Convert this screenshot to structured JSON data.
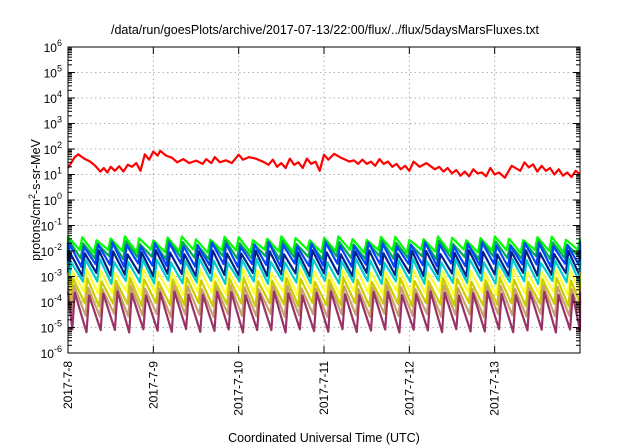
{
  "chart_data": {
    "type": "line",
    "title": "/data/run/goesPlots/archive/2017-07-13/22:00/flux/../flux/5daysMarsFluxes.txt",
    "xlabel": "Coordinated Universal Time (UTC)",
    "ylabel_prefix": "protons/cm",
    "ylabel_exp": "2",
    "ylabel_suffix": "-s-sr-MeV",
    "y_scale": "log",
    "ylim_exp": [
      -6,
      6
    ],
    "y_ticks": [
      {
        "base": "10",
        "exp": "6"
      },
      {
        "base": "10",
        "exp": "5"
      },
      {
        "base": "10",
        "exp": "4"
      },
      {
        "base": "10",
        "exp": "3"
      },
      {
        "base": "10",
        "exp": "2"
      },
      {
        "base": "10",
        "exp": "1"
      },
      {
        "base": "10",
        "exp": "0"
      },
      {
        "base": "10",
        "exp": "-1"
      },
      {
        "base": "10",
        "exp": "-2"
      },
      {
        "base": "10",
        "exp": "-3"
      },
      {
        "base": "10",
        "exp": "-4"
      },
      {
        "base": "10",
        "exp": "-5"
      },
      {
        "base": "10",
        "exp": "-6"
      }
    ],
    "x_ticks": [
      "2017-7-8",
      "2017-7-9",
      "2017-7-10",
      "2017-7-11",
      "2017-7-12",
      "2017-7-13"
    ],
    "xlim_days": [
      0,
      6
    ],
    "grid": true,
    "series": [
      {
        "color": "#ff0000",
        "x": [
          0.0,
          0.08,
          0.12,
          0.19,
          0.26,
          0.32,
          0.38,
          0.42,
          0.46,
          0.5,
          0.55,
          0.6,
          0.65,
          0.7,
          0.75,
          0.8,
          0.85,
          0.9,
          0.95,
          1.0,
          1.05,
          1.08,
          1.15,
          1.22,
          1.28,
          1.35,
          1.42,
          1.5,
          1.58,
          1.62,
          1.68,
          1.72,
          1.78,
          1.85,
          1.92,
          2.0,
          2.05,
          2.12,
          2.2,
          2.3,
          2.35,
          2.4,
          2.45,
          2.5,
          2.55,
          2.6,
          2.65,
          2.7,
          2.75,
          2.8,
          2.85,
          2.9,
          2.95,
          3.0,
          3.05,
          3.12,
          3.2,
          3.3,
          3.35,
          3.4,
          3.45,
          3.5,
          3.55,
          3.6,
          3.65,
          3.7,
          3.75,
          3.8,
          3.85,
          3.9,
          3.95,
          4.0,
          4.05,
          4.12,
          4.2,
          4.3,
          4.35,
          4.4,
          4.45,
          4.5,
          4.55,
          4.6,
          4.65,
          4.7,
          4.75,
          4.8,
          4.85,
          4.9,
          4.95,
          5.0,
          5.05,
          5.12,
          5.2,
          5.3,
          5.35,
          5.4,
          5.45,
          5.5,
          5.55,
          5.6,
          5.65,
          5.7,
          5.75,
          5.8,
          5.85,
          5.9,
          5.95,
          6.0
        ],
        "y": [
          18,
          48,
          62,
          42,
          32,
          22,
          13,
          18,
          12,
          20,
          14,
          21,
          13,
          24,
          20,
          28,
          14,
          62,
          38,
          80,
          55,
          85,
          55,
          45,
          30,
          40,
          28,
          35,
          26,
          40,
          28,
          48,
          30,
          36,
          28,
          60,
          38,
          48,
          42,
          30,
          24,
          38,
          20,
          28,
          18,
          42,
          24,
          30,
          18,
          42,
          26,
          32,
          14,
          60,
          38,
          65,
          45,
          32,
          36,
          26,
          38,
          26,
          32,
          22,
          40,
          26,
          32,
          20,
          26,
          16,
          22,
          14,
          32,
          20,
          28,
          16,
          20,
          13,
          18,
          11,
          15,
          9,
          13,
          8.5,
          16,
          11,
          12,
          8.5,
          18,
          10,
          12,
          7.5,
          22,
          14,
          30,
          19,
          25,
          13,
          22,
          14,
          18,
          10,
          16,
          9,
          12,
          8,
          14,
          10
        ]
      },
      {
        "color": "#00ff00",
        "phase": 0.0,
        "period": 0.1667,
        "peak": 0.032,
        "trough": 0.01
      },
      {
        "color": "#00aa55",
        "phase": 0.012,
        "period": 0.1667,
        "peak": 0.022,
        "trough": 0.0055
      },
      {
        "color": "#0044ff",
        "phase": 0.02,
        "period": 0.1667,
        "peak": 0.018,
        "trough": 0.0028
      },
      {
        "color": "#002288",
        "phase": 0.03,
        "period": 0.1667,
        "peak": 0.009,
        "trough": 0.0012
      },
      {
        "color": "#00cccc",
        "phase": 0.04,
        "period": 0.1667,
        "peak": 0.0042,
        "trough": 0.0006
      },
      {
        "color": "#ffff33",
        "phase": 0.05,
        "period": 0.1667,
        "peak": 0.0017,
        "trough": 0.00022
      },
      {
        "color": "#cccc00",
        "phase": 0.06,
        "period": 0.1667,
        "peak": 0.00075,
        "trough": 8e-05
      },
      {
        "color": "#c8a070",
        "phase": 0.07,
        "period": 0.1667,
        "peak": 0.00038,
        "trough": 3e-05
      },
      {
        "color": "#993366",
        "phase": 0.08,
        "period": 0.1667,
        "peak": 0.00022,
        "trough": 7.5e-06
      }
    ]
  }
}
